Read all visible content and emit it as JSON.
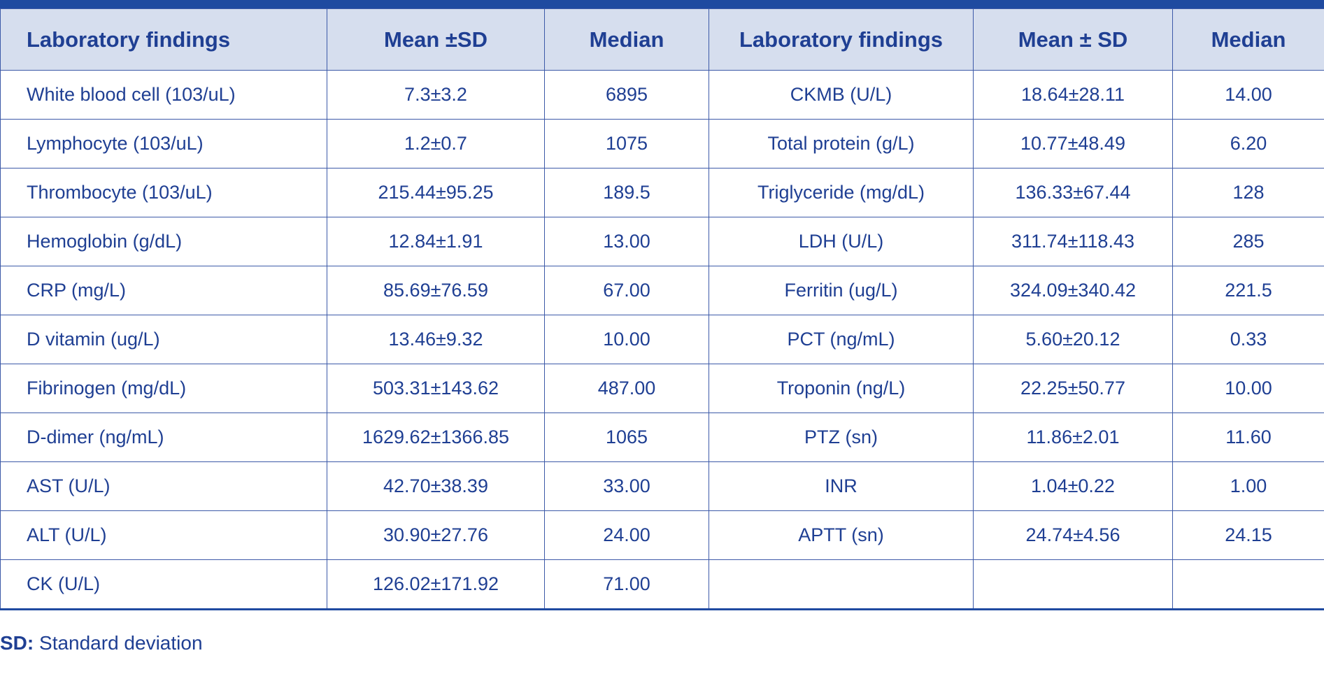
{
  "table": {
    "headers": [
      "Laboratory findings",
      "Mean ±SD",
      "Median",
      "Laboratory findings",
      "Mean ± SD",
      "Median"
    ],
    "rows": [
      [
        "White blood cell (103/uL)",
        "7.3±3.2",
        "6895",
        "CKMB (U/L)",
        "18.64±28.11",
        "14.00"
      ],
      [
        "Lymphocyte (103/uL)",
        "1.2±0.7",
        "1075",
        "Total protein (g/L)",
        "10.77±48.49",
        "6.20"
      ],
      [
        "Thrombocyte (103/uL)",
        "215.44±95.25",
        "189.5",
        "Triglyceride (mg/dL)",
        "136.33±67.44",
        "128"
      ],
      [
        "Hemoglobin (g/dL)",
        "12.84±1.91",
        "13.00",
        "LDH (U/L)",
        "311.74±118.43",
        "285"
      ],
      [
        "CRP (mg/L)",
        "85.69±76.59",
        "67.00",
        "Ferritin (ug/L)",
        "324.09±340.42",
        "221.5"
      ],
      [
        "D vitamin (ug/L)",
        "13.46±9.32",
        "10.00",
        "PCT (ng/mL)",
        "5.60±20.12",
        "0.33"
      ],
      [
        "Fibrinogen (mg/dL)",
        "503.31±143.62",
        "487.00",
        "Troponin (ng/L)",
        "22.25±50.77",
        "10.00"
      ],
      [
        "D-dimer (ng/mL)",
        "1629.62±1366.85",
        "1065",
        "PTZ (sn)",
        "11.86±2.01",
        "11.60"
      ],
      [
        "AST (U/L)",
        "42.70±38.39",
        "33.00",
        "INR",
        "1.04±0.22",
        "1.00"
      ],
      [
        "ALT (U/L)",
        "30.90±27.76",
        "24.00",
        "APTT (sn)",
        "24.74±4.56",
        "24.15"
      ],
      [
        "CK (U/L)",
        "126.02±171.92",
        "71.00",
        "",
        "",
        ""
      ]
    ]
  },
  "footnote": {
    "abbr": "SD:",
    "text": " Standard deviation"
  },
  "colors": {
    "header_bg": "#d6deee",
    "text": "#1f3f93",
    "rule": "#1f4aa0"
  }
}
